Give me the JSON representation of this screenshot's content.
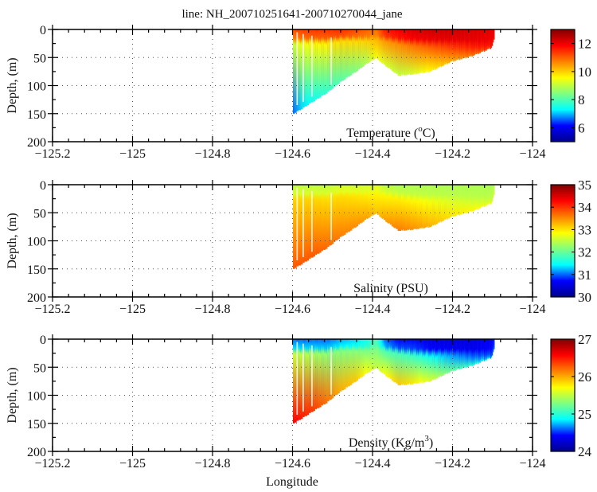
{
  "chart_data": {
    "type": "heatmap",
    "title": "line: NH_200710251641-200710270044_jane",
    "xlabel": "Longitude",
    "ylabel": "Depth, (m)",
    "xlim": [
      -125.2,
      -124
    ],
    "ylim": [
      0,
      200
    ],
    "y_inverted": true,
    "x_ticks": [
      -125.2,
      -125,
      -124.8,
      -124.6,
      -124.4,
      -124.2,
      -124
    ],
    "x_tick_labels": [
      "−125.2",
      "−125",
      "−124.8",
      "−124.6",
      "−124.4",
      "−124.2",
      "−124"
    ],
    "x_minor_step": 0.04,
    "y_ticks": [
      0,
      50,
      100,
      150,
      200
    ],
    "y_tick_labels": [
      "0",
      "50",
      "100",
      "150",
      "200"
    ],
    "y_minor_step": 25,
    "grid": "dotted",
    "colormap": "jet",
    "jet_stops": [
      "#00008f",
      "#0000ff",
      "#00ffff",
      "#80ff80",
      "#ffff00",
      "#ff8000",
      "#ff0000",
      "#800000"
    ],
    "section_bottom": {
      "longitude": [
        -124.599,
        -124.579,
        -124.551,
        -124.515,
        -124.482,
        -124.442,
        -124.416,
        -124.392,
        -124.37,
        -124.336,
        -124.302,
        -124.257,
        -124.203,
        -124.151,
        -124.104,
        -124.096
      ],
      "max_depth_m": [
        150,
        142,
        129,
        113,
        94,
        75,
        61,
        51,
        64,
        82,
        80,
        75,
        57,
        47,
        33,
        16
      ]
    },
    "panels": [
      {
        "name": "temperature",
        "label_main": "Temperature (",
        "label_sup": "o",
        "label_end": "C)",
        "colorbar": {
          "range": [
            5,
            13
          ],
          "ticks": [
            6,
            8,
            10,
            12
          ],
          "tick_labels": [
            "6",
            "8",
            "10",
            "12"
          ]
        },
        "surface_values": [
          11.2,
          11.3,
          11.4,
          11.4,
          11.5,
          11.2,
          11.0,
          10.8,
          11.6,
          12.0,
          12.2,
          12.3,
          12.3,
          12.2,
          12.1,
          12.0
        ],
        "bottom_values": [
          6.6,
          7.1,
          7.4,
          7.7,
          8.0,
          8.4,
          8.8,
          9.5,
          9.2,
          9.0,
          9.2,
          9.6,
          10.3,
          10.8,
          11.2,
          11.6
        ],
        "thermocline_depth_m": [
          25,
          25,
          25,
          25,
          20,
          20,
          20,
          18,
          20,
          25,
          28,
          30,
          30,
          32,
          30,
          14
        ]
      },
      {
        "name": "salinity",
        "label_main": "Salinity (PSU)",
        "label_sup": "",
        "label_end": "",
        "colorbar": {
          "range": [
            30,
            35
          ],
          "ticks": [
            30,
            31,
            32,
            33,
            34,
            35
          ],
          "tick_labels": [
            "30",
            "31",
            "32",
            "33",
            "34",
            "35"
          ]
        },
        "surface_values": [
          32.5,
          32.5,
          32.5,
          32.5,
          32.6,
          32.6,
          32.6,
          32.7,
          32.5,
          32.4,
          32.4,
          32.4,
          32.4,
          32.4,
          32.4,
          32.5
        ],
        "bottom_values": [
          33.8,
          33.8,
          33.8,
          33.7,
          33.6,
          33.5,
          33.4,
          33.2,
          33.4,
          33.6,
          33.5,
          33.3,
          33.0,
          32.9,
          32.8,
          32.6
        ],
        "thermocline_depth_m": [
          25,
          25,
          25,
          25,
          20,
          20,
          20,
          18,
          20,
          25,
          28,
          30,
          30,
          32,
          30,
          14
        ]
      },
      {
        "name": "density",
        "label_main": "Density (Kg/m",
        "label_sup": "3",
        "label_end": ")",
        "colorbar": {
          "range": [
            24,
            27
          ],
          "ticks": [
            24,
            25,
            26,
            27
          ],
          "tick_labels": [
            "24",
            "25",
            "26",
            "27"
          ]
        },
        "surface_values": [
          24.6,
          24.6,
          24.6,
          24.6,
          24.7,
          24.8,
          24.9,
          25.1,
          24.6,
          24.4,
          24.4,
          24.3,
          24.3,
          24.3,
          24.4,
          24.5
        ],
        "bottom_values": [
          26.6,
          26.5,
          26.4,
          26.2,
          26.0,
          25.9,
          25.7,
          25.5,
          25.7,
          25.9,
          25.8,
          25.6,
          25.2,
          25.0,
          24.8,
          24.6
        ],
        "thermocline_depth_m": [
          25,
          25,
          25,
          25,
          20,
          20,
          20,
          18,
          20,
          25,
          28,
          30,
          30,
          32,
          30,
          14
        ]
      }
    ]
  }
}
